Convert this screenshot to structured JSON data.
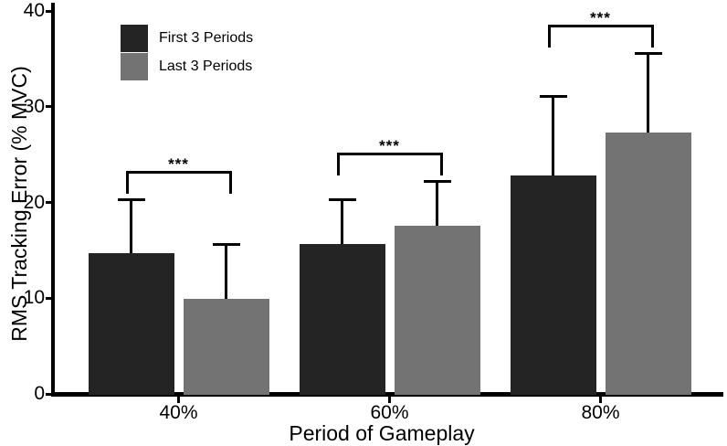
{
  "figure": {
    "background": "#ffffff",
    "line_color": "#000000"
  },
  "chart_data": {
    "type": "bar",
    "title": "",
    "xlabel": "Period of Gameplay",
    "ylabel": "RMS Tracking Error (% MVC)",
    "categories": [
      "40%",
      "60%",
      "80%"
    ],
    "series": [
      {
        "name": "First 3 Periods",
        "color": "#242424",
        "values": [
          14.7,
          15.7,
          22.8
        ],
        "errors_upper_sd": [
          5.6,
          4.6,
          8.3
        ]
      },
      {
        "name": "Last 3 Periods",
        "color": "#737373",
        "values": [
          9.9,
          17.6,
          27.3
        ],
        "errors_upper_sd": [
          5.7,
          4.6,
          8.3
        ]
      }
    ],
    "ylim": [
      0,
      40
    ],
    "yticks": [
      0,
      10,
      20,
      30,
      40
    ],
    "grid": false,
    "legend_position": "top-left-inside",
    "error_bars": "upper-whisker-with-cap",
    "significance": [
      {
        "category": "40%",
        "label": "***"
      },
      {
        "category": "60%",
        "label": "***"
      },
      {
        "category": "80%",
        "label": "***"
      }
    ]
  }
}
